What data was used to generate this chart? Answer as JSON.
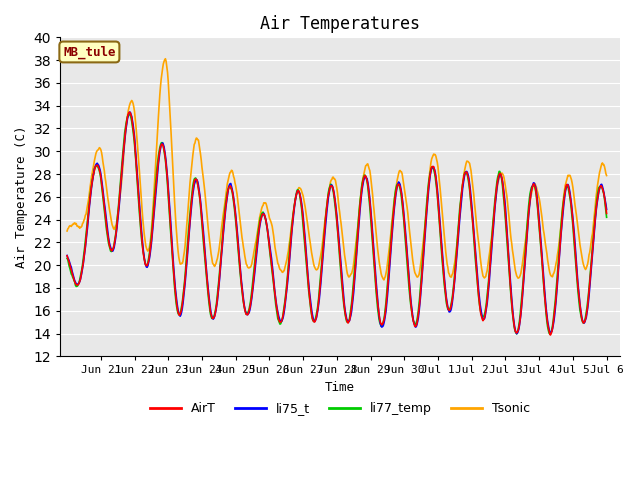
{
  "title": "Air Temperatures",
  "ylabel": "Air Temperature (C)",
  "xlabel": "Time",
  "ylim": [
    12,
    40
  ],
  "yticks": [
    12,
    14,
    16,
    18,
    20,
    22,
    24,
    26,
    28,
    30,
    32,
    34,
    36,
    38,
    40
  ],
  "annotation_text": "MB_tule",
  "annotation_color": "#8B0000",
  "annotation_bg": "#FFFFC0",
  "annotation_border": "#8B6914",
  "series_colors": {
    "AirT": "#FF0000",
    "li75_t": "#0000FF",
    "li77_temp": "#00CC00",
    "Tsonic": "#FFA500"
  },
  "linewidth": 1.2,
  "bg_color": "#E8E8E8",
  "grid_color": "#FFFFFF",
  "title_fontsize": 12,
  "label_fontsize": 9,
  "tick_fontsize": 8
}
